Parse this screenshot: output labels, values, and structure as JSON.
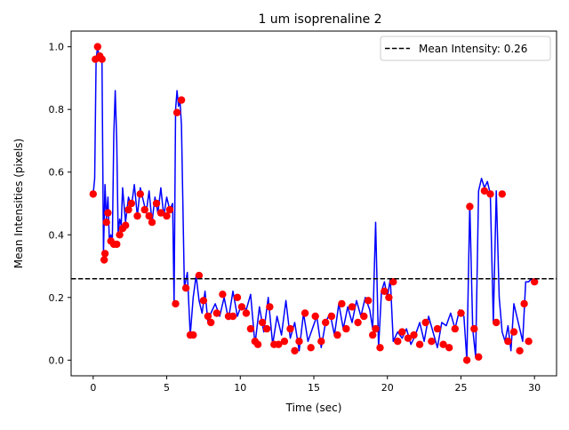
{
  "chart_data": {
    "type": "line",
    "title": "1 um isoprenaline 2",
    "xlabel": "Time (sec)",
    "ylabel": "Mean Intensities (pixels)",
    "xlim": [
      -1.5,
      31.5
    ],
    "ylim": [
      -0.05,
      1.05
    ],
    "x_ticks": [
      0,
      5,
      10,
      15,
      20,
      25,
      30
    ],
    "y_ticks": [
      0.0,
      0.2,
      0.4,
      0.6,
      0.8,
      1.0
    ],
    "x_tick_labels": [
      "0",
      "5",
      "10",
      "15",
      "20",
      "25",
      "30"
    ],
    "y_tick_labels": [
      "0.0",
      "0.2",
      "0.4",
      "0.6",
      "0.8",
      "1.0"
    ],
    "grid": false,
    "legend": {
      "position": "upper right",
      "entries": [
        {
          "label": "Mean Intensity: 0.26",
          "style": "dashed",
          "color": "#000000"
        }
      ]
    },
    "mean_line": {
      "y": 0.26,
      "color": "#000000",
      "style": "dashed"
    },
    "series": [
      {
        "style": "line",
        "color": "#0000ff",
        "x": [
          0,
          0.1,
          0.2,
          0.3,
          0.4,
          0.5,
          0.6,
          0.7,
          0.8,
          0.9,
          1.0,
          1.1,
          1.2,
          1.3,
          1.4,
          1.5,
          1.6,
          1.7,
          1.8,
          1.9,
          2.0,
          2.2,
          2.4,
          2.6,
          2.8,
          3.0,
          3.2,
          3.4,
          3.6,
          3.8,
          4.0,
          4.2,
          4.4,
          4.6,
          4.8,
          5.0,
          5.2,
          5.4,
          5.5,
          5.6,
          5.7,
          5.8,
          5.9,
          6.0,
          6.2,
          6.4,
          6.6,
          6.8,
          7.0,
          7.2,
          7.4,
          7.6,
          7.8,
          8.0,
          8.3,
          8.6,
          8.9,
          9.2,
          9.5,
          9.8,
          10.1,
          10.4,
          10.7,
          11.0,
          11.3,
          11.6,
          11.9,
          12.2,
          12.5,
          12.8,
          13.1,
          13.4,
          13.7,
          14.0,
          14.3,
          14.6,
          14.9,
          15.2,
          15.5,
          15.8,
          16.1,
          16.4,
          16.7,
          17.0,
          17.3,
          17.6,
          17.9,
          18.2,
          18.5,
          18.8,
          19.0,
          19.2,
          19.4,
          19.6,
          19.8,
          20.0,
          20.2,
          20.4,
          20.7,
          21.0,
          21.3,
          21.6,
          21.9,
          22.2,
          22.5,
          22.8,
          23.1,
          23.4,
          23.7,
          24.0,
          24.3,
          24.6,
          24.9,
          25.2,
          25.4,
          25.6,
          25.8,
          26.0,
          26.2,
          26.4,
          26.6,
          26.8,
          27.0,
          27.2,
          27.4,
          27.6,
          27.8,
          28.0,
          28.2,
          28.4,
          28.6,
          28.8,
          29.0,
          29.2,
          29.4,
          29.6,
          29.8,
          30.0
        ],
        "y": [
          0.53,
          0.58,
          0.96,
          1.0,
          0.97,
          0.98,
          0.96,
          0.34,
          0.56,
          0.45,
          0.52,
          0.38,
          0.4,
          0.37,
          0.72,
          0.86,
          0.7,
          0.4,
          0.45,
          0.43,
          0.55,
          0.44,
          0.52,
          0.49,
          0.56,
          0.46,
          0.55,
          0.51,
          0.47,
          0.54,
          0.44,
          0.52,
          0.47,
          0.55,
          0.46,
          0.52,
          0.48,
          0.5,
          0.18,
          0.8,
          0.86,
          0.81,
          0.83,
          0.75,
          0.23,
          0.28,
          0.08,
          0.2,
          0.27,
          0.19,
          0.15,
          0.22,
          0.12,
          0.15,
          0.18,
          0.14,
          0.2,
          0.13,
          0.22,
          0.14,
          0.18,
          0.16,
          0.21,
          0.05,
          0.17,
          0.09,
          0.2,
          0.05,
          0.14,
          0.08,
          0.19,
          0.07,
          0.12,
          0.03,
          0.15,
          0.06,
          0.1,
          0.14,
          0.04,
          0.12,
          0.15,
          0.08,
          0.18,
          0.1,
          0.17,
          0.12,
          0.19,
          0.14,
          0.2,
          0.16,
          0.1,
          0.44,
          0.04,
          0.22,
          0.25,
          0.2,
          0.26,
          0.06,
          0.09,
          0.07,
          0.1,
          0.05,
          0.08,
          0.12,
          0.06,
          0.14,
          0.09,
          0.04,
          0.12,
          0.11,
          0.15,
          0.1,
          0.16,
          0.14,
          0.0,
          0.5,
          0.1,
          0.01,
          0.54,
          0.58,
          0.55,
          0.57,
          0.53,
          0.12,
          0.54,
          0.2,
          0.09,
          0.06,
          0.11,
          0.03,
          0.18,
          0.14,
          0.1,
          0.06,
          0.25,
          0.25,
          0.26,
          0.25
        ]
      },
      {
        "style": "scatter",
        "color": "#ff0000",
        "x": [
          0,
          0.15,
          0.3,
          0.45,
          0.6,
          0.75,
          0.8,
          0.9,
          1.0,
          1.2,
          1.4,
          1.6,
          1.8,
          2.0,
          2.2,
          2.4,
          2.6,
          3.0,
          3.2,
          3.5,
          3.8,
          4.0,
          4.3,
          4.6,
          5.0,
          5.2,
          5.6,
          5.7,
          6.0,
          6.3,
          6.6,
          6.8,
          7.2,
          7.5,
          7.8,
          8.0,
          8.4,
          8.8,
          9.2,
          9.5,
          9.8,
          10.1,
          10.4,
          10.7,
          11.0,
          11.2,
          11.5,
          11.8,
          12.0,
          12.3,
          12.6,
          13.0,
          13.4,
          13.7,
          14.0,
          14.4,
          14.8,
          15.1,
          15.5,
          15.8,
          16.2,
          16.6,
          16.9,
          17.2,
          17.6,
          18.0,
          18.4,
          18.7,
          19.0,
          19.2,
          19.5,
          19.8,
          20.1,
          20.4,
          20.7,
          21.0,
          21.4,
          21.8,
          22.2,
          22.6,
          23.0,
          23.4,
          23.8,
          24.2,
          24.6,
          25.0,
          25.4,
          25.6,
          25.9,
          26.2,
          26.6,
          27.0,
          27.4,
          27.8,
          28.2,
          28.6,
          29.0,
          29.3,
          29.6,
          30.0
        ],
        "y": [
          0.53,
          0.96,
          1.0,
          0.97,
          0.96,
          0.32,
          0.34,
          0.44,
          0.47,
          0.38,
          0.37,
          0.37,
          0.4,
          0.42,
          0.43,
          0.48,
          0.5,
          0.46,
          0.53,
          0.48,
          0.46,
          0.44,
          0.5,
          0.47,
          0.46,
          0.48,
          0.18,
          0.79,
          0.83,
          0.23,
          0.08,
          0.08,
          0.27,
          0.19,
          0.14,
          0.12,
          0.15,
          0.21,
          0.14,
          0.14,
          0.2,
          0.17,
          0.15,
          0.1,
          0.06,
          0.05,
          0.12,
          0.1,
          0.17,
          0.05,
          0.05,
          0.06,
          0.1,
          0.03,
          0.06,
          0.15,
          0.04,
          0.14,
          0.06,
          0.12,
          0.14,
          0.08,
          0.18,
          0.1,
          0.17,
          0.12,
          0.14,
          0.19,
          0.08,
          0.1,
          0.04,
          0.22,
          0.2,
          0.25,
          0.06,
          0.09,
          0.07,
          0.08,
          0.05,
          0.12,
          0.06,
          0.1,
          0.05,
          0.04,
          0.1,
          0.15,
          0.0,
          0.49,
          0.1,
          0.01,
          0.54,
          0.53,
          0.12,
          0.53,
          0.06,
          0.09,
          0.03,
          0.18,
          0.06,
          0.25
        ]
      }
    ]
  }
}
